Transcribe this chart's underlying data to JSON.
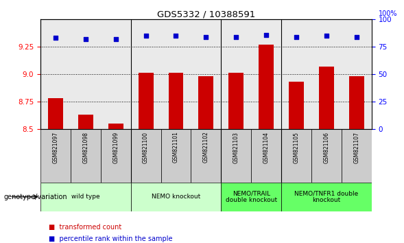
{
  "title": "GDS5332 / 10388591",
  "samples": [
    "GSM821097",
    "GSM821098",
    "GSM821099",
    "GSM821100",
    "GSM821101",
    "GSM821102",
    "GSM821103",
    "GSM821104",
    "GSM821105",
    "GSM821106",
    "GSM821107"
  ],
  "transformed_counts": [
    8.78,
    8.63,
    8.55,
    9.01,
    9.01,
    8.98,
    9.01,
    9.27,
    8.93,
    9.07,
    8.98
  ],
  "percentile_ranks": [
    83,
    82,
    82,
    85,
    85,
    84,
    84,
    86,
    84,
    85,
    84
  ],
  "ylim_left": [
    8.5,
    9.5
  ],
  "ylim_right": [
    0,
    100
  ],
  "yticks_left": [
    8.5,
    8.75,
    9.0,
    9.25
  ],
  "yticks_right": [
    0,
    25,
    50,
    75,
    100
  ],
  "bar_color": "#cc0000",
  "dot_color": "#0000cc",
  "groups": [
    {
      "label": "wild type",
      "indices": [
        0,
        1,
        2
      ],
      "color": "#ccffcc"
    },
    {
      "label": "NEMO knockout",
      "indices": [
        3,
        4,
        5
      ],
      "color": "#ccffcc"
    },
    {
      "label": "NEMO/TRAIL\ndouble knockout",
      "indices": [
        6,
        7
      ],
      "color": "#66ff66"
    },
    {
      "label": "NEMO/TNFR1 double\nknockout",
      "indices": [
        8,
        9,
        10
      ],
      "color": "#66ff66"
    }
  ],
  "group_boundaries": [
    2.5,
    5.5,
    7.5
  ],
  "xlabel_left": "genotype/variation",
  "legend_transformed": "transformed count",
  "legend_percentile": "percentile rank within the sample",
  "tick_label_fontsize": 6.5,
  "bar_width": 0.5
}
